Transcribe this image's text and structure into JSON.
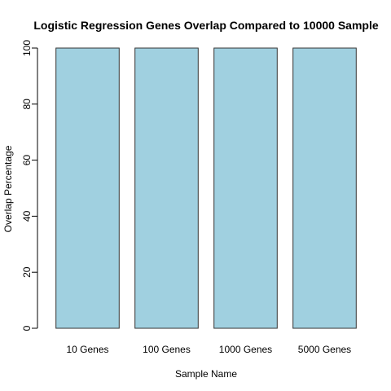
{
  "chart_data": {
    "type": "bar",
    "title": "Logistic Regression Genes Overlap Compared to 10000 Sample",
    "xlabel": "Sample Name",
    "ylabel": "Overlap Percentage",
    "categories": [
      "10 Genes",
      "100 Genes",
      "1000 Genes",
      "5000 Genes"
    ],
    "values": [
      100,
      100,
      100,
      100
    ],
    "ylim": [
      0,
      100
    ],
    "yticks": [
      "0",
      "20",
      "40",
      "60",
      "80",
      "100"
    ],
    "bar_color": "#a0d0e0",
    "bar_stroke": "#333333",
    "grid": false
  }
}
